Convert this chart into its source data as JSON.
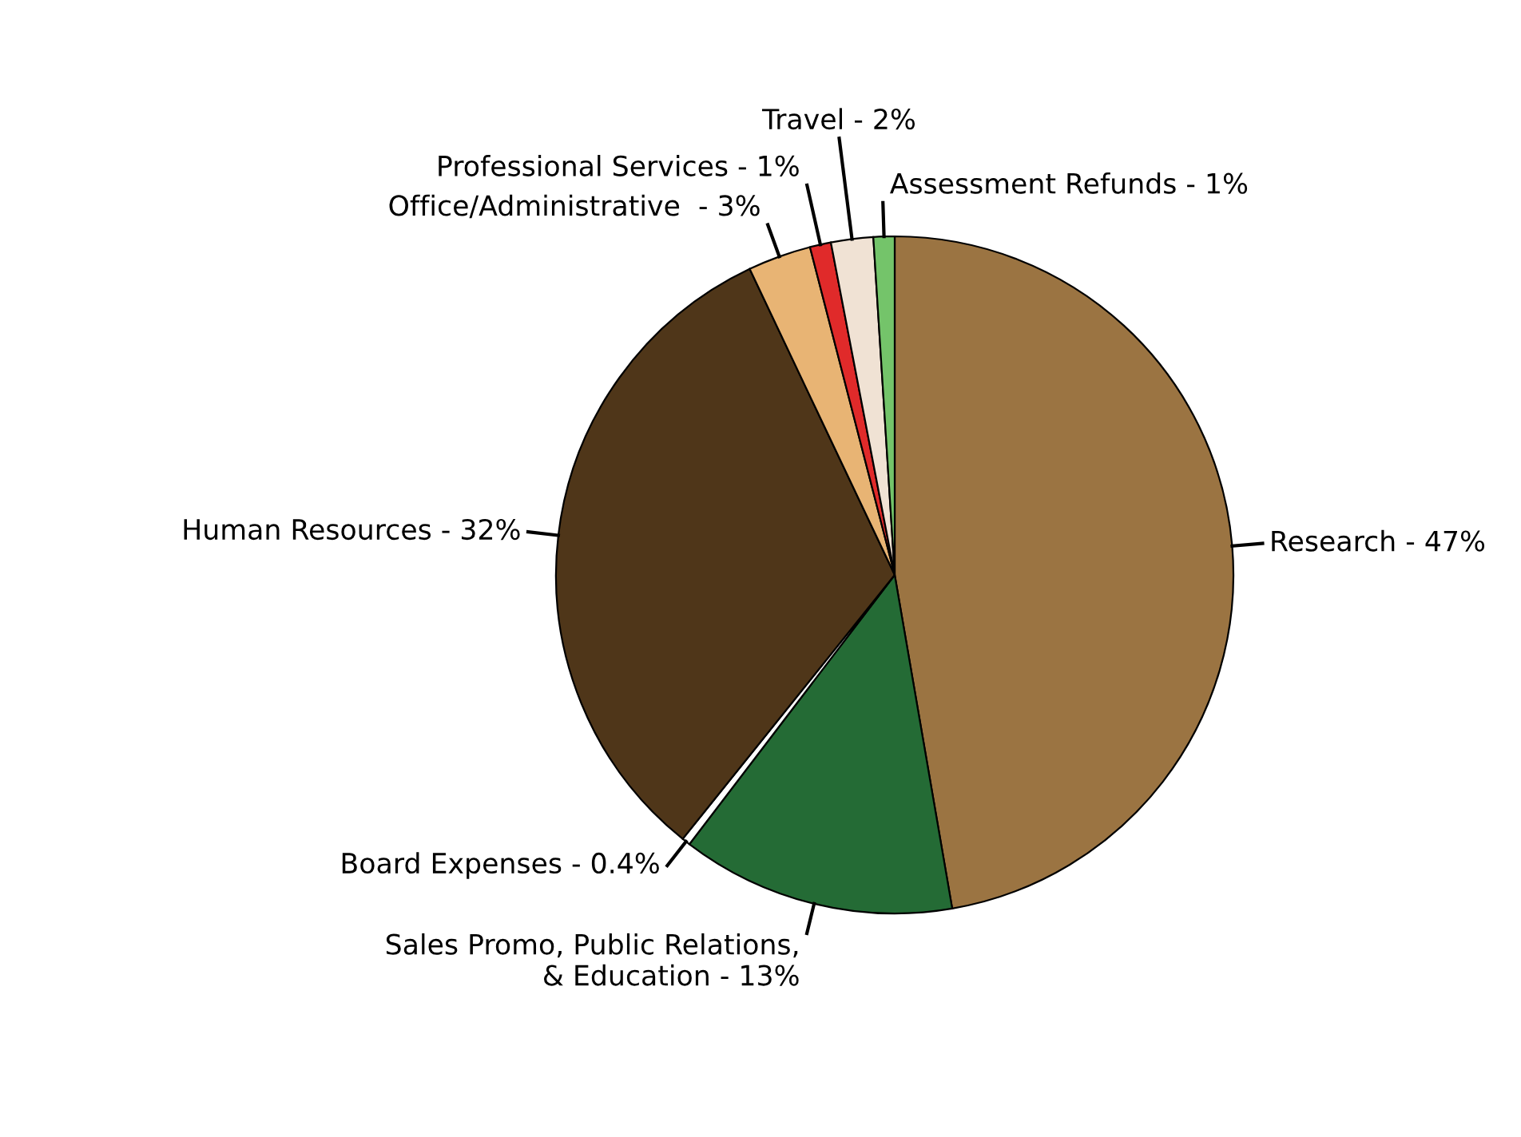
{
  "chart_data": {
    "type": "pie",
    "categories": [
      "Research - 47%",
      "Sales Promo, Public Relations,\n& Education - 13%",
      "Board Expenses - 0.4%",
      "Human Resources - 32%",
      "Office/Administrative  - 3%",
      "Professional Services - 1%",
      "Travel - 2%",
      "Assessment Refunds - 1%"
    ],
    "values": [
      47,
      13,
      0.4,
      32,
      3,
      1,
      2,
      1
    ],
    "colors": [
      "#9b7442",
      "#246b35",
      "#ffffff",
      "#4f3619",
      "#e8b474",
      "#e02a2a",
      "#f0e2d4",
      "#74c46a"
    ],
    "legend": false
  }
}
